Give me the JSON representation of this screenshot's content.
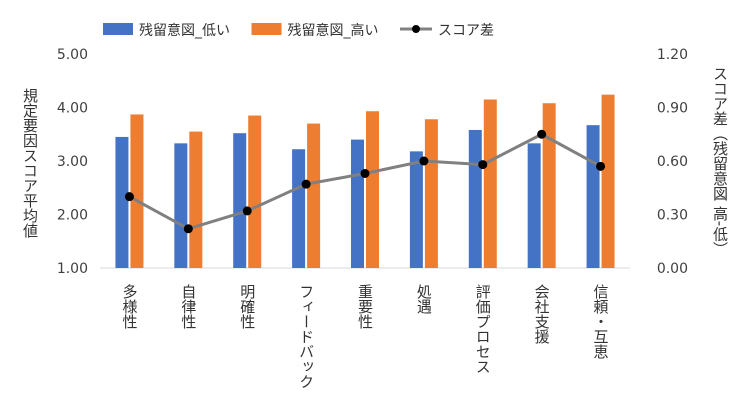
{
  "chart_data": {
    "type": "bar",
    "categories": [
      "多様性",
      "自律性",
      "明確性",
      "フィードバック",
      "重要性",
      "処遇",
      "評価プロセス",
      "会社支援",
      "信頼・互恵"
    ],
    "series": [
      {
        "name": "残留意図_低い",
        "type": "bar",
        "axis": "left",
        "color": "#4472C4",
        "values": [
          3.45,
          3.33,
          3.52,
          3.22,
          3.4,
          3.18,
          3.58,
          3.33,
          3.67
        ]
      },
      {
        "name": "残留意図_高い",
        "type": "bar",
        "axis": "left",
        "color": "#ED7D31",
        "values": [
          3.87,
          3.55,
          3.85,
          3.7,
          3.93,
          3.78,
          4.15,
          4.08,
          4.24
        ]
      },
      {
        "name": "スコア差",
        "type": "line",
        "axis": "right",
        "color": "#808080",
        "marker_color": "#000000",
        "values": [
          0.4,
          0.22,
          0.32,
          0.47,
          0.53,
          0.6,
          0.58,
          0.75,
          0.57
        ]
      }
    ],
    "ylabel": "規定要因スコア平均値",
    "y2label": "スコア差（残留意図 高-低）",
    "ylim": [
      1.0,
      5.0
    ],
    "y2lim": [
      0.0,
      1.2
    ],
    "yticks": [
      "1.00",
      "2.00",
      "3.00",
      "4.00",
      "5.00"
    ],
    "y2ticks": [
      "0.00",
      "0.30",
      "0.60",
      "0.90",
      "1.20"
    ],
    "grid": false,
    "legend_position": "top"
  }
}
